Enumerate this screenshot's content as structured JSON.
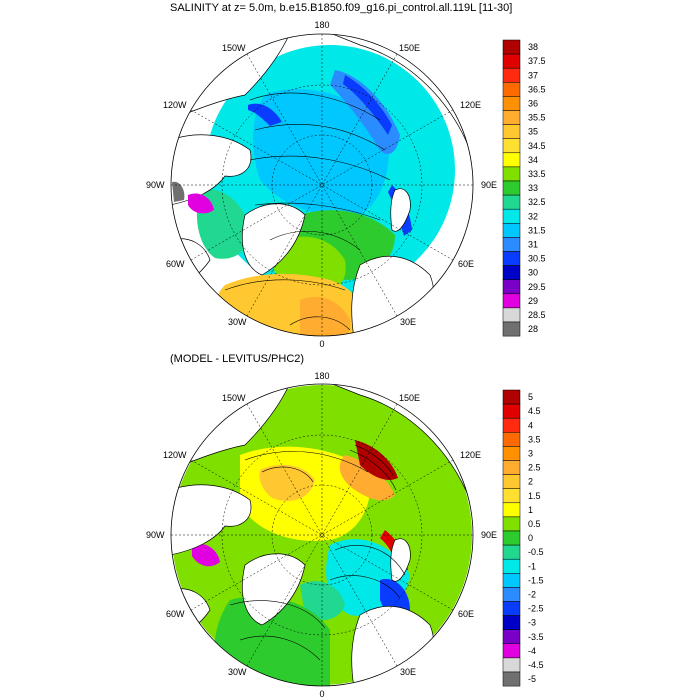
{
  "panels": [
    {
      "title": "SALINITY at z=   5.0m, b.e15.B1850.f09_g16.pi_control.all.119L [11-30]",
      "grid_labels": {
        "top": "180",
        "bottom": "0",
        "left": "90W",
        "right": "90E",
        "upper_left": "150W",
        "upper_right": "150E",
        "mid_upper_left": "120W",
        "mid_upper_right": "120E",
        "mid_lower_left": "60W",
        "mid_lower_right": "60E",
        "lower_left": "30W",
        "lower_right": "30E"
      },
      "colorbar": {
        "labels": [
          "38",
          "37.5",
          "37",
          "36.5",
          "36",
          "35.5",
          "35",
          "34.5",
          "34",
          "33.5",
          "33",
          "32.5",
          "32",
          "31.5",
          "31",
          "30.5",
          "30",
          "29.5",
          "29",
          "28.5",
          "28"
        ],
        "colors": [
          "#b00000",
          "#e00000",
          "#ff2a10",
          "#ff6a00",
          "#ff9000",
          "#ffac30",
          "#ffc830",
          "#ffe030",
          "#ffff00",
          "#7fe000",
          "#2ecb2e",
          "#20d890",
          "#00e8e8",
          "#00c8ff",
          "#2a8cff",
          "#0a3cff",
          "#0000c8",
          "#7a00c8",
          "#e000e0",
          "#d8d8d8",
          "#707070"
        ]
      }
    },
    {
      "title": "(MODEL - LEVITUS/PHC2)",
      "grid_labels": {
        "top": "180",
        "bottom": "0",
        "left": "90W",
        "right": "90E",
        "upper_left": "150W",
        "upper_right": "150E",
        "mid_upper_left": "120W",
        "mid_upper_right": "120E",
        "mid_lower_left": "60W",
        "mid_lower_right": "60E",
        "lower_left": "30W",
        "lower_right": "30E"
      },
      "colorbar": {
        "labels": [
          "5",
          "4.5",
          "4",
          "3.5",
          "3",
          "2.5",
          "2",
          "1.5",
          "1",
          "0.5",
          "0",
          "-0.5",
          "-1",
          "-1.5",
          "-2",
          "-2.5",
          "-3",
          "-3.5",
          "-4",
          "-4.5",
          "-5"
        ],
        "colors": [
          "#b00000",
          "#e00000",
          "#ff2a10",
          "#ff6a00",
          "#ff9000",
          "#ffac30",
          "#ffc830",
          "#ffe030",
          "#ffff00",
          "#7fe000",
          "#2ecb2e",
          "#20d890",
          "#00e8e8",
          "#00c8ff",
          "#2a8cff",
          "#0a3cff",
          "#0000c8",
          "#7a00c8",
          "#e000e0",
          "#d8d8d8",
          "#707070"
        ]
      }
    }
  ]
}
